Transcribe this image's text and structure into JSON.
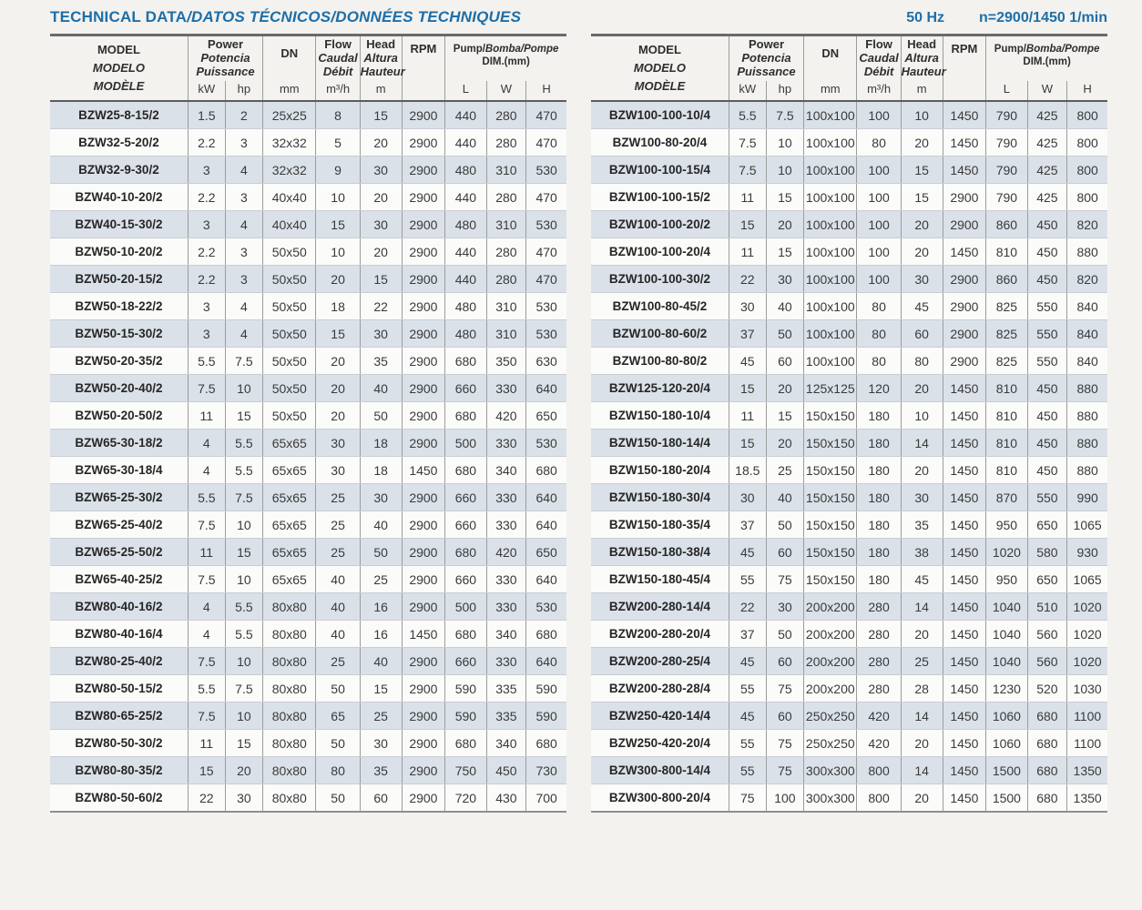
{
  "page": {
    "title_main": "TECHNICAL DATA",
    "title_rest": "/DATOS TÉCNICOS/DONNÉES TECHNIQUES",
    "frequency": "50 Hz",
    "speed": "n=2900/1450 1/min",
    "colors": {
      "accent_blue": "#1d6ea8",
      "stripe_row": "#dbe1e9",
      "grid_line": "#9c9c9c"
    }
  },
  "header": {
    "model_lines": [
      "MODEL",
      "MODELO",
      "MODÈLE"
    ],
    "power_lines": [
      "Power",
      "Potencia",
      "Puissance"
    ],
    "kw": "kW",
    "hp": "hp",
    "dn": "DN",
    "dn_unit": "mm",
    "flow_lines": [
      "Flow",
      "Caudal",
      "Débit"
    ],
    "flow_unit": "m³/h",
    "head_lines": [
      "Head",
      "Altura",
      "Hauteur"
    ],
    "head_unit": "m",
    "rpm": "RPM",
    "pump_dim_part1": "Pump/",
    "pump_dim_part2": "Bomba/Pompe",
    "pump_dim_line2": "DIM.(mm)",
    "l": "L",
    "w": "W",
    "h": "H"
  },
  "left_table": {
    "rows": [
      [
        "BZW25-8-15/2",
        "1.5",
        "2",
        "25x25",
        "8",
        "15",
        "2900",
        "440",
        "280",
        "470"
      ],
      [
        "BZW32-5-20/2",
        "2.2",
        "3",
        "32x32",
        "5",
        "20",
        "2900",
        "440",
        "280",
        "470"
      ],
      [
        "BZW32-9-30/2",
        "3",
        "4",
        "32x32",
        "9",
        "30",
        "2900",
        "480",
        "310",
        "530"
      ],
      [
        "BZW40-10-20/2",
        "2.2",
        "3",
        "40x40",
        "10",
        "20",
        "2900",
        "440",
        "280",
        "470"
      ],
      [
        "BZW40-15-30/2",
        "3",
        "4",
        "40x40",
        "15",
        "30",
        "2900",
        "480",
        "310",
        "530"
      ],
      [
        "BZW50-10-20/2",
        "2.2",
        "3",
        "50x50",
        "10",
        "20",
        "2900",
        "440",
        "280",
        "470"
      ],
      [
        "BZW50-20-15/2",
        "2.2",
        "3",
        "50x50",
        "20",
        "15",
        "2900",
        "440",
        "280",
        "470"
      ],
      [
        "BZW50-18-22/2",
        "3",
        "4",
        "50x50",
        "18",
        "22",
        "2900",
        "480",
        "310",
        "530"
      ],
      [
        "BZW50-15-30/2",
        "3",
        "4",
        "50x50",
        "15",
        "30",
        "2900",
        "480",
        "310",
        "530"
      ],
      [
        "BZW50-20-35/2",
        "5.5",
        "7.5",
        "50x50",
        "20",
        "35",
        "2900",
        "680",
        "350",
        "630"
      ],
      [
        "BZW50-20-40/2",
        "7.5",
        "10",
        "50x50",
        "20",
        "40",
        "2900",
        "660",
        "330",
        "640"
      ],
      [
        "BZW50-20-50/2",
        "11",
        "15",
        "50x50",
        "20",
        "50",
        "2900",
        "680",
        "420",
        "650"
      ],
      [
        "BZW65-30-18/2",
        "4",
        "5.5",
        "65x65",
        "30",
        "18",
        "2900",
        "500",
        "330",
        "530"
      ],
      [
        "BZW65-30-18/4",
        "4",
        "5.5",
        "65x65",
        "30",
        "18",
        "1450",
        "680",
        "340",
        "680"
      ],
      [
        "BZW65-25-30/2",
        "5.5",
        "7.5",
        "65x65",
        "25",
        "30",
        "2900",
        "660",
        "330",
        "640"
      ],
      [
        "BZW65-25-40/2",
        "7.5",
        "10",
        "65x65",
        "25",
        "40",
        "2900",
        "660",
        "330",
        "640"
      ],
      [
        "BZW65-25-50/2",
        "11",
        "15",
        "65x65",
        "25",
        "50",
        "2900",
        "680",
        "420",
        "650"
      ],
      [
        "BZW65-40-25/2",
        "7.5",
        "10",
        "65x65",
        "40",
        "25",
        "2900",
        "660",
        "330",
        "640"
      ],
      [
        "BZW80-40-16/2",
        "4",
        "5.5",
        "80x80",
        "40",
        "16",
        "2900",
        "500",
        "330",
        "530"
      ],
      [
        "BZW80-40-16/4",
        "4",
        "5.5",
        "80x80",
        "40",
        "16",
        "1450",
        "680",
        "340",
        "680"
      ],
      [
        "BZW80-25-40/2",
        "7.5",
        "10",
        "80x80",
        "25",
        "40",
        "2900",
        "660",
        "330",
        "640"
      ],
      [
        "BZW80-50-15/2",
        "5.5",
        "7.5",
        "80x80",
        "50",
        "15",
        "2900",
        "590",
        "335",
        "590"
      ],
      [
        "BZW80-65-25/2",
        "7.5",
        "10",
        "80x80",
        "65",
        "25",
        "2900",
        "590",
        "335",
        "590"
      ],
      [
        "BZW80-50-30/2",
        "11",
        "15",
        "80x80",
        "50",
        "30",
        "2900",
        "680",
        "340",
        "680"
      ],
      [
        "BZW80-80-35/2",
        "15",
        "20",
        "80x80",
        "80",
        "35",
        "2900",
        "750",
        "450",
        "730"
      ],
      [
        "BZW80-50-60/2",
        "22",
        "30",
        "80x80",
        "50",
        "60",
        "2900",
        "720",
        "430",
        "700"
      ]
    ]
  },
  "right_table": {
    "rows": [
      [
        "BZW100-100-10/4",
        "5.5",
        "7.5",
        "100x100",
        "100",
        "10",
        "1450",
        "790",
        "425",
        "800"
      ],
      [
        "BZW100-80-20/4",
        "7.5",
        "10",
        "100x100",
        "80",
        "20",
        "1450",
        "790",
        "425",
        "800"
      ],
      [
        "BZW100-100-15/4",
        "7.5",
        "10",
        "100x100",
        "100",
        "15",
        "1450",
        "790",
        "425",
        "800"
      ],
      [
        "BZW100-100-15/2",
        "11",
        "15",
        "100x100",
        "100",
        "15",
        "2900",
        "790",
        "425",
        "800"
      ],
      [
        "BZW100-100-20/2",
        "15",
        "20",
        "100x100",
        "100",
        "20",
        "2900",
        "860",
        "450",
        "820"
      ],
      [
        "BZW100-100-20/4",
        "11",
        "15",
        "100x100",
        "100",
        "20",
        "1450",
        "810",
        "450",
        "880"
      ],
      [
        "BZW100-100-30/2",
        "22",
        "30",
        "100x100",
        "100",
        "30",
        "2900",
        "860",
        "450",
        "820"
      ],
      [
        "BZW100-80-45/2",
        "30",
        "40",
        "100x100",
        "80",
        "45",
        "2900",
        "825",
        "550",
        "840"
      ],
      [
        "BZW100-80-60/2",
        "37",
        "50",
        "100x100",
        "80",
        "60",
        "2900",
        "825",
        "550",
        "840"
      ],
      [
        "BZW100-80-80/2",
        "45",
        "60",
        "100x100",
        "80",
        "80",
        "2900",
        "825",
        "550",
        "840"
      ],
      [
        "BZW125-120-20/4",
        "15",
        "20",
        "125x125",
        "120",
        "20",
        "1450",
        "810",
        "450",
        "880"
      ],
      [
        "BZW150-180-10/4",
        "11",
        "15",
        "150x150",
        "180",
        "10",
        "1450",
        "810",
        "450",
        "880"
      ],
      [
        "BZW150-180-14/4",
        "15",
        "20",
        "150x150",
        "180",
        "14",
        "1450",
        "810",
        "450",
        "880"
      ],
      [
        "BZW150-180-20/4",
        "18.5",
        "25",
        "150x150",
        "180",
        "20",
        "1450",
        "810",
        "450",
        "880"
      ],
      [
        "BZW150-180-30/4",
        "30",
        "40",
        "150x150",
        "180",
        "30",
        "1450",
        "870",
        "550",
        "990"
      ],
      [
        "BZW150-180-35/4",
        "37",
        "50",
        "150x150",
        "180",
        "35",
        "1450",
        "950",
        "650",
        "1065"
      ],
      [
        "BZW150-180-38/4",
        "45",
        "60",
        "150x150",
        "180",
        "38",
        "1450",
        "1020",
        "580",
        "930"
      ],
      [
        "BZW150-180-45/4",
        "55",
        "75",
        "150x150",
        "180",
        "45",
        "1450",
        "950",
        "650",
        "1065"
      ],
      [
        "BZW200-280-14/4",
        "22",
        "30",
        "200x200",
        "280",
        "14",
        "1450",
        "1040",
        "510",
        "1020"
      ],
      [
        "BZW200-280-20/4",
        "37",
        "50",
        "200x200",
        "280",
        "20",
        "1450",
        "1040",
        "560",
        "1020"
      ],
      [
        "BZW200-280-25/4",
        "45",
        "60",
        "200x200",
        "280",
        "25",
        "1450",
        "1040",
        "560",
        "1020"
      ],
      [
        "BZW200-280-28/4",
        "55",
        "75",
        "200x200",
        "280",
        "28",
        "1450",
        "1230",
        "520",
        "1030"
      ],
      [
        "BZW250-420-14/4",
        "45",
        "60",
        "250x250",
        "420",
        "14",
        "1450",
        "1060",
        "680",
        "1100"
      ],
      [
        "BZW250-420-20/4",
        "55",
        "75",
        "250x250",
        "420",
        "20",
        "1450",
        "1060",
        "680",
        "1100"
      ],
      [
        "BZW300-800-14/4",
        "55",
        "75",
        "300x300",
        "800",
        "14",
        "1450",
        "1500",
        "680",
        "1350"
      ],
      [
        "BZW300-800-20/4",
        "75",
        "100",
        "300x300",
        "800",
        "20",
        "1450",
        "1500",
        "680",
        "1350"
      ]
    ]
  }
}
